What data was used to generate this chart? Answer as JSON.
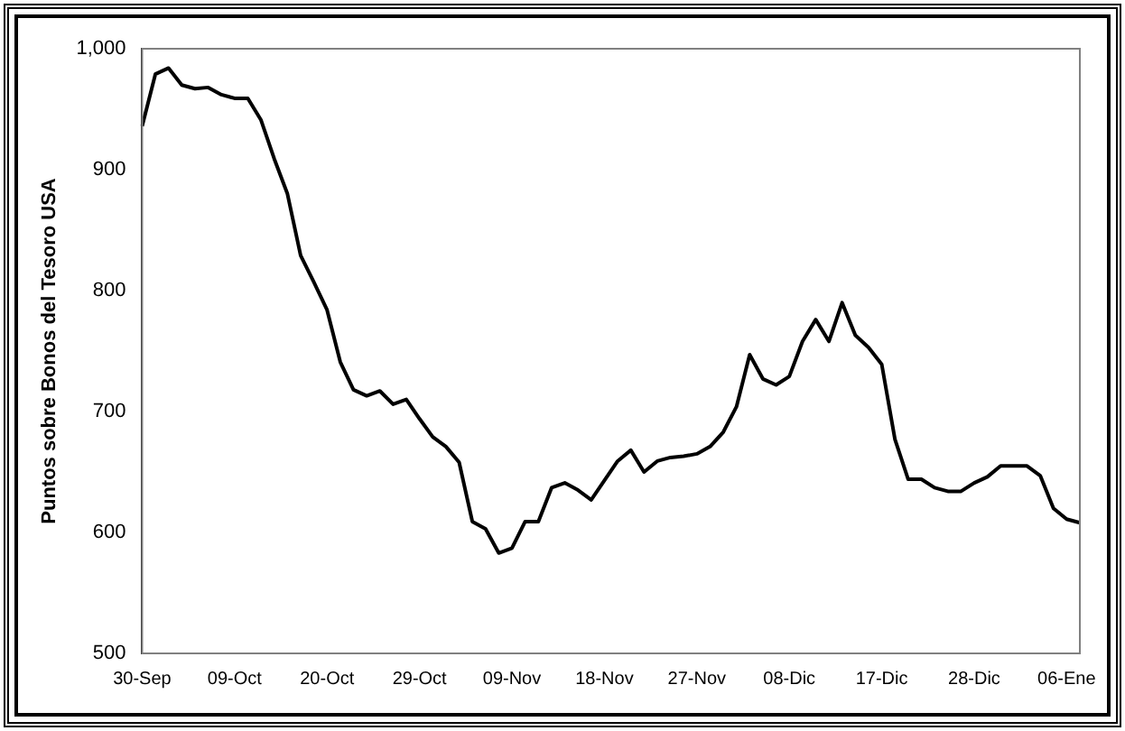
{
  "chart_data": {
    "type": "line",
    "ylabel": "Puntos sobre Bonos del Tesoro USA",
    "categories": [
      "30-Sep",
      null,
      null,
      null,
      null,
      null,
      null,
      "09-Oct",
      null,
      null,
      null,
      null,
      null,
      null,
      "20-Oct",
      null,
      null,
      null,
      null,
      null,
      null,
      "29-Oct",
      null,
      null,
      null,
      null,
      null,
      null,
      "09-Nov",
      null,
      null,
      null,
      null,
      null,
      null,
      "18-Nov",
      null,
      null,
      null,
      null,
      null,
      null,
      "27-Nov",
      null,
      null,
      null,
      null,
      null,
      null,
      "08-Dic",
      null,
      null,
      null,
      null,
      null,
      null,
      "17-Dic",
      null,
      null,
      null,
      null,
      null,
      null,
      "28-Dic",
      null,
      null,
      null,
      null,
      null,
      null,
      "06-Ene",
      null
    ],
    "series": [
      {
        "color": "#000000",
        "values": [
          936,
          979,
          984,
          970,
          967,
          968,
          962,
          959,
          959,
          941,
          909,
          880,
          829,
          807,
          784,
          741,
          718,
          713,
          717,
          706,
          710,
          694,
          679,
          671,
          658,
          609,
          603,
          583,
          587,
          609,
          609,
          637,
          641,
          635,
          627,
          643,
          659,
          668,
          650,
          659,
          662,
          663,
          665,
          671,
          683,
          704,
          747,
          727,
          722,
          729,
          758,
          776,
          758,
          790,
          763,
          753,
          739,
          677,
          644,
          644,
          637,
          634,
          634,
          641,
          646,
          655,
          655,
          655,
          647,
          620,
          611,
          608
        ]
      }
    ],
    "ylim": [
      500,
      1000
    ],
    "yticks": [
      500,
      600,
      700,
      800,
      900,
      {
        "value": 1000,
        "label": "1,000"
      }
    ],
    "grid": false,
    "legend": false,
    "marker": "none",
    "line_style": "solid"
  }
}
